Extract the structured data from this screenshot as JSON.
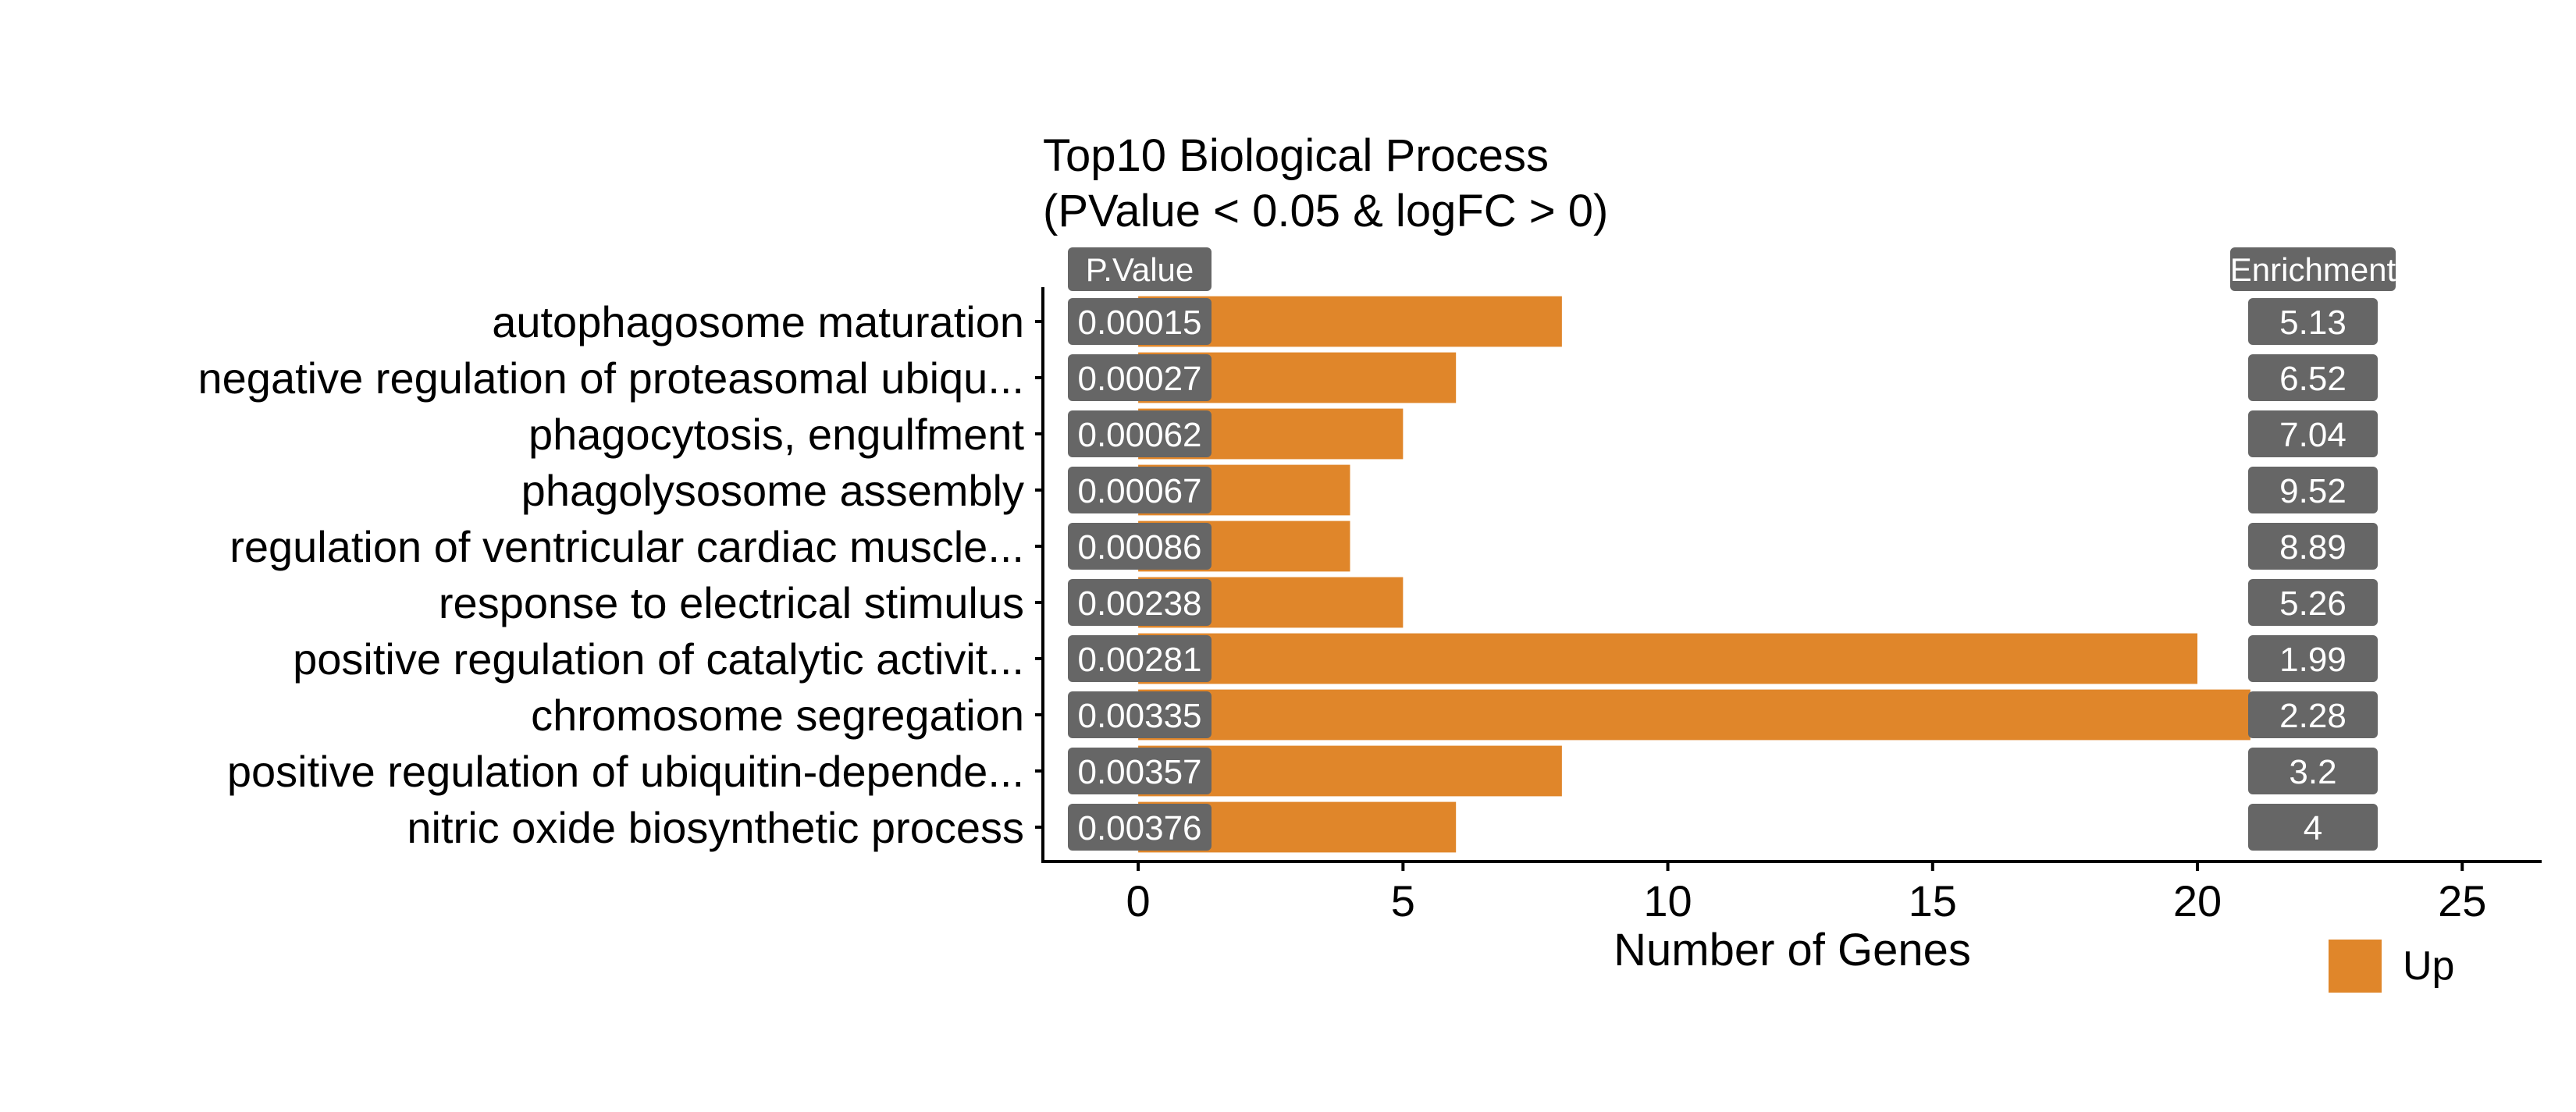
{
  "chart_data": {
    "type": "bar",
    "orientation": "horizontal",
    "title": "Top10 Biological Process",
    "subtitle": "(PValue < 0.05 & logFC > 0)",
    "xlabel": "Number of Genes",
    "ylabel": "",
    "xlim": [
      -1.8,
      26.5
    ],
    "xticks": [
      "0",
      "5",
      "10",
      "15",
      "20",
      "25"
    ],
    "grid": false,
    "legend_position": "bottom-right",
    "pvalue_header": "P.Value",
    "enrichment_header": "Enrichment",
    "categories": [
      "autophagosome maturation",
      "negative regulation of proteasomal ubiqu...",
      "phagocytosis, engulfment",
      "phagolysosome assembly",
      "regulation of ventricular cardiac muscle...",
      "response to electrical stimulus",
      "positive regulation of catalytic activit...",
      "chromosome segregation",
      "positive regulation of ubiquitin-depende...",
      "nitric oxide biosynthetic process"
    ],
    "series": [
      {
        "name": "Up",
        "color": "#E0862A",
        "values": [
          8,
          6,
          5,
          4,
          4,
          5,
          20,
          21,
          8,
          6
        ]
      }
    ],
    "pvalues": [
      "0.00015",
      "0.00027",
      "0.00062",
      "0.00067",
      "0.00086",
      "0.00238",
      "0.00281",
      "0.00335",
      "0.00357",
      "0.00376"
    ],
    "enrichment": [
      "5.13",
      "6.52",
      "7.04",
      "9.52",
      "8.89",
      "5.26",
      "1.99",
      "2.28",
      "3.2",
      "4"
    ],
    "label_box_color": "#666666"
  }
}
